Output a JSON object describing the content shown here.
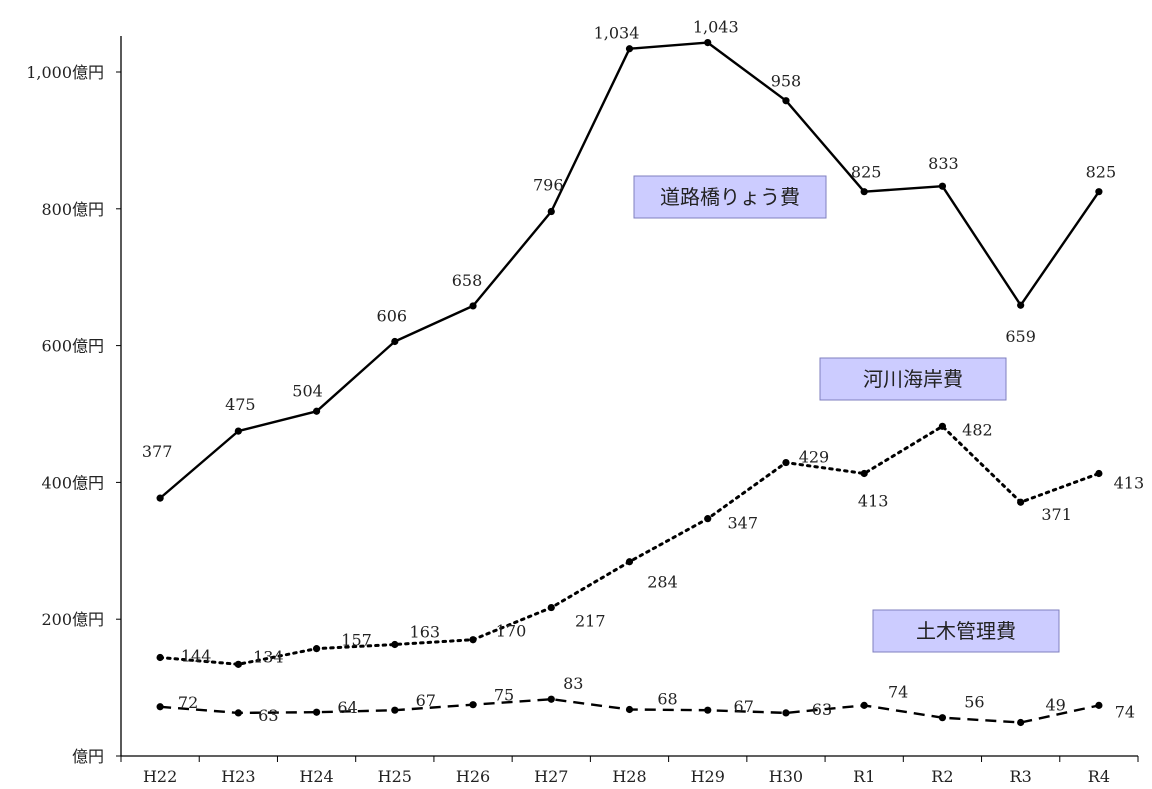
{
  "chart_data": {
    "type": "line",
    "categories": [
      "H22",
      "H23",
      "H24",
      "H25",
      "H26",
      "H27",
      "H28",
      "H29",
      "H30",
      "R1",
      "R2",
      "R3",
      "R4"
    ],
    "y_unit": "億円",
    "y_tick_values": [
      0,
      200,
      400,
      600,
      800,
      1000
    ],
    "y_tick_labels": [
      "億円",
      "200億円",
      "400億円",
      "600億円",
      "800億円",
      "1,000億円"
    ],
    "ylim": [
      0,
      1050
    ],
    "grid": false,
    "series": [
      {
        "name": "道路橋りょう費",
        "style": "solid",
        "values": [
          377,
          475,
          504,
          606,
          658,
          796,
          1034,
          1043,
          958,
          825,
          833,
          659,
          825
        ],
        "value_labels": [
          "377",
          "475",
          "504",
          "606",
          "658",
          "796",
          "1,034",
          "1,043",
          "958",
          "825",
          "833",
          "659",
          "825"
        ]
      },
      {
        "name": "河川海岸費",
        "style": "dotted",
        "values": [
          144,
          134,
          157,
          163,
          170,
          217,
          284,
          347,
          429,
          413,
          482,
          371,
          413
        ],
        "value_labels": [
          "144",
          "134",
          "157",
          "163",
          "170",
          "217",
          "284",
          "347",
          "429",
          "413",
          "482",
          "371",
          "413"
        ]
      },
      {
        "name": "土木管理費",
        "style": "dashed",
        "values": [
          72,
          63,
          64,
          67,
          75,
          83,
          68,
          67,
          63,
          74,
          56,
          49,
          74
        ],
        "value_labels": [
          "72",
          "63",
          "64",
          "67",
          "75",
          "83",
          "68",
          "67",
          "63",
          "74",
          "56",
          "49",
          "74"
        ]
      }
    ],
    "colors": {
      "line": "#000000",
      "label_box_fill": "#ccccff",
      "label_box_border": "#7f7fbf"
    }
  }
}
